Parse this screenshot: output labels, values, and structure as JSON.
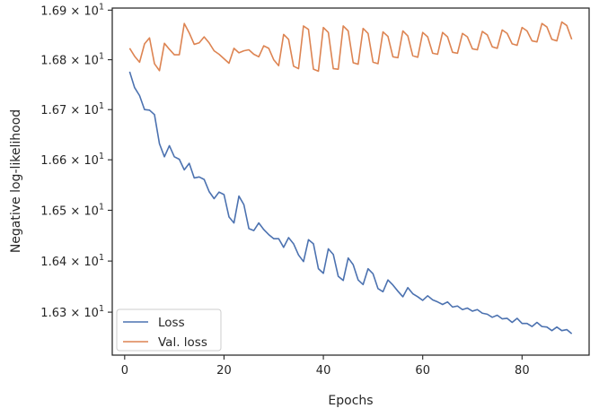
{
  "chart_data": {
    "type": "line",
    "xlabel": "Epochs",
    "ylabel": "Negative log-likelihood",
    "yscale": "log",
    "xlim": [
      -2.5,
      93.5
    ],
    "ylim": [
      16.2164,
      16.9042
    ],
    "xticks": [
      0,
      20,
      40,
      60,
      80
    ],
    "yticks": [
      {
        "value": 16.3,
        "mantissa": "1.63",
        "base": "10",
        "exponent": "1"
      },
      {
        "value": 16.4,
        "mantissa": "1.64",
        "base": "10",
        "exponent": "1"
      },
      {
        "value": 16.5,
        "mantissa": "1.65",
        "base": "10",
        "exponent": "1"
      },
      {
        "value": 16.6,
        "mantissa": "1.66",
        "base": "10",
        "exponent": "1"
      },
      {
        "value": 16.7,
        "mantissa": "1.67",
        "base": "10",
        "exponent": "1"
      },
      {
        "value": 16.8,
        "mantissa": "1.68",
        "base": "10",
        "exponent": "1"
      },
      {
        "value": 16.9,
        "mantissa": "1.69",
        "base": "10",
        "exponent": "1"
      }
    ],
    "grid": false,
    "legend_position": "lower-left",
    "x": [
      1,
      2,
      3,
      4,
      5,
      6,
      7,
      8,
      9,
      10,
      11,
      12,
      13,
      14,
      15,
      16,
      17,
      18,
      19,
      20,
      21,
      22,
      23,
      24,
      25,
      26,
      27,
      28,
      29,
      30,
      31,
      32,
      33,
      34,
      35,
      36,
      37,
      38,
      39,
      40,
      41,
      42,
      43,
      44,
      45,
      46,
      47,
      48,
      49,
      50,
      51,
      52,
      53,
      54,
      55,
      56,
      57,
      58,
      59,
      60,
      61,
      62,
      63,
      64,
      65,
      66,
      67,
      68,
      69,
      70,
      71,
      72,
      73,
      74,
      75,
      76,
      77,
      78,
      79,
      80,
      81,
      82,
      83,
      84,
      85,
      86,
      87,
      88,
      89,
      90
    ],
    "series": [
      {
        "name": "Loss",
        "color": "#4c72b0",
        "values": [
          16.776,
          16.744,
          16.728,
          16.7,
          16.699,
          16.69,
          16.632,
          16.606,
          16.628,
          16.606,
          16.601,
          16.58,
          16.593,
          16.564,
          16.566,
          16.561,
          16.537,
          16.523,
          16.536,
          16.531,
          16.487,
          16.475,
          16.528,
          16.511,
          16.464,
          16.46,
          16.475,
          16.462,
          16.452,
          16.444,
          16.444,
          16.427,
          16.446,
          16.434,
          16.412,
          16.399,
          16.442,
          16.434,
          16.385,
          16.376,
          16.424,
          16.413,
          16.37,
          16.362,
          16.406,
          16.393,
          16.363,
          16.354,
          16.385,
          16.375,
          16.346,
          16.34,
          16.363,
          16.353,
          16.341,
          16.33,
          16.348,
          16.336,
          16.33,
          16.323,
          16.332,
          16.324,
          16.32,
          16.315,
          16.32,
          16.31,
          16.312,
          16.305,
          16.308,
          16.302,
          16.305,
          16.298,
          16.296,
          16.29,
          16.294,
          16.287,
          16.288,
          16.28,
          16.288,
          16.278,
          16.278,
          16.272,
          16.28,
          16.272,
          16.271,
          16.264,
          16.271,
          16.264,
          16.266,
          16.258
        ]
      },
      {
        "name": "Val. loss",
        "color": "#dd8452",
        "values": [
          16.823,
          16.807,
          16.795,
          16.832,
          16.844,
          16.792,
          16.778,
          16.833,
          16.821,
          16.81,
          16.81,
          16.873,
          16.854,
          16.831,
          16.834,
          16.846,
          16.834,
          16.818,
          16.811,
          16.802,
          16.793,
          16.823,
          16.814,
          16.818,
          16.82,
          16.811,
          16.806,
          16.828,
          16.823,
          16.8,
          16.788,
          16.851,
          16.841,
          16.787,
          16.782,
          16.868,
          16.861,
          16.781,
          16.777,
          16.865,
          16.855,
          16.782,
          16.781,
          16.868,
          16.858,
          16.794,
          16.791,
          16.863,
          16.853,
          16.795,
          16.792,
          16.856,
          16.847,
          16.806,
          16.804,
          16.858,
          16.848,
          16.808,
          16.805,
          16.855,
          16.846,
          16.813,
          16.811,
          16.855,
          16.846,
          16.815,
          16.813,
          16.853,
          16.846,
          16.822,
          16.82,
          16.857,
          16.85,
          16.826,
          16.823,
          16.86,
          16.853,
          16.832,
          16.829,
          16.865,
          16.858,
          16.838,
          16.836,
          16.873,
          16.866,
          16.841,
          16.838,
          16.876,
          16.869,
          16.841
        ]
      }
    ]
  }
}
